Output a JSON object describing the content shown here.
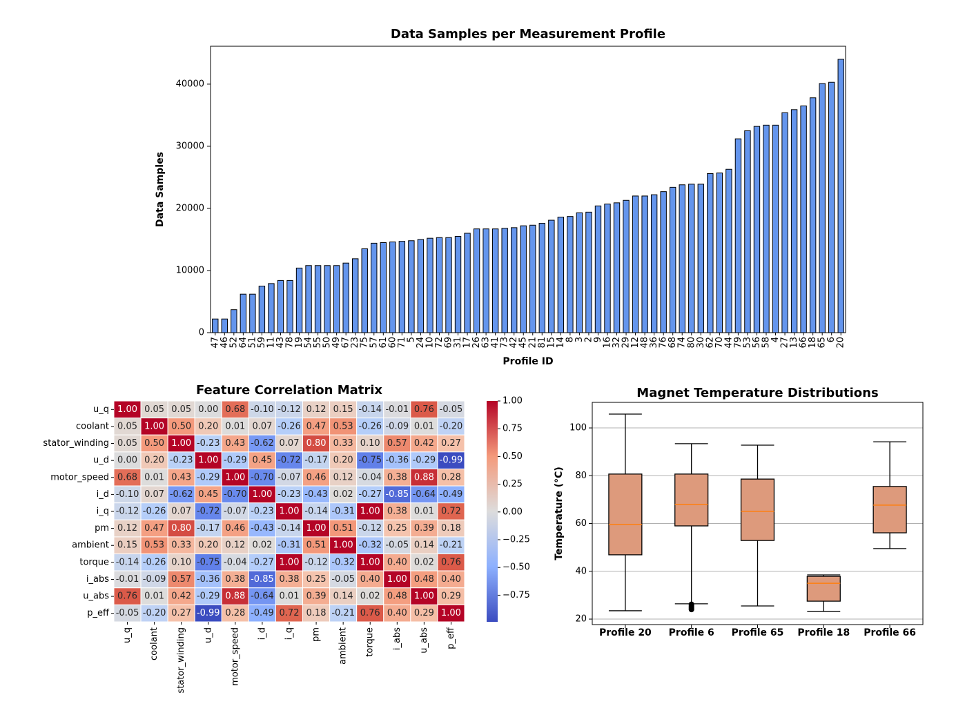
{
  "chart_data": [
    {
      "type": "bar",
      "title": "Data Samples per Measurement Profile",
      "x_label": "Profile ID",
      "y_label": "Data Samples",
      "categories": [
        "47",
        "46",
        "52",
        "64",
        "51",
        "59",
        "11",
        "43",
        "78",
        "19",
        "54",
        "55",
        "50",
        "49",
        "67",
        "23",
        "75",
        "57",
        "61",
        "60",
        "71",
        "5",
        "24",
        "10",
        "72",
        "69",
        "31",
        "17",
        "26",
        "63",
        "41",
        "73",
        "42",
        "45",
        "21",
        "81",
        "15",
        "14",
        "8",
        "3",
        "2",
        "9",
        "16",
        "32",
        "29",
        "12",
        "48",
        "36",
        "76",
        "68",
        "74",
        "80",
        "30",
        "62",
        "70",
        "44",
        "79",
        "53",
        "56",
        "58",
        "4",
        "27",
        "13",
        "66",
        "18",
        "65",
        "6",
        "20"
      ],
      "values": [
        2200,
        2200,
        3700,
        6200,
        6200,
        7500,
        7900,
        8400,
        8400,
        10400,
        10800,
        10800,
        10800,
        10800,
        11200,
        11900,
        13500,
        14400,
        14500,
        14600,
        14700,
        14800,
        15000,
        15200,
        15300,
        15300,
        15500,
        16000,
        16700,
        16700,
        16700,
        16800,
        16900,
        17200,
        17300,
        17600,
        18100,
        18600,
        18700,
        19300,
        19400,
        20400,
        20700,
        20900,
        21300,
        22000,
        22000,
        22200,
        22700,
        23400,
        23800,
        23900,
        23900,
        25600,
        25700,
        26300,
        31200,
        32500,
        33200,
        33400,
        33400,
        35400,
        35900,
        36500,
        37800,
        40100,
        40300,
        44000
      ],
      "color": "#6495ed",
      "edge_color": "#000000",
      "ylim": [
        0,
        46100
      ],
      "yticks": [
        0,
        10000,
        20000,
        30000,
        40000
      ]
    },
    {
      "type": "heatmap",
      "title": "Feature Correlation Matrix",
      "colormap": "coolwarm",
      "categories": [
        "u_q",
        "coolant",
        "stator_winding",
        "u_d",
        "motor_speed",
        "i_d",
        "i_q",
        "pm",
        "ambient",
        "torque",
        "i_abs",
        "u_abs",
        "p_eff"
      ],
      "values": [
        [
          1,
          0.05,
          0.05,
          0,
          0.68,
          -0.1,
          -0.12,
          0.12,
          0.15,
          -0.14,
          -0.01,
          0.76,
          -0.05
        ],
        [
          0.05,
          1,
          0.5,
          0.2,
          0.01,
          0.07,
          -0.26,
          0.47,
          0.53,
          -0.26,
          -0.09,
          0.01,
          -0.2
        ],
        [
          0.05,
          0.5,
          1,
          -0.23,
          0.43,
          -0.62,
          0.07,
          0.8,
          0.33,
          0.1,
          0.57,
          0.42,
          0.27
        ],
        [
          0,
          0.2,
          -0.23,
          1,
          -0.29,
          0.45,
          -0.72,
          -0.17,
          0.2,
          -0.75,
          -0.36,
          -0.29,
          -0.99
        ],
        [
          0.68,
          0.01,
          0.43,
          -0.29,
          1,
          -0.7,
          -0.07,
          0.46,
          0.12,
          -0.04,
          0.38,
          0.88,
          0.28
        ],
        [
          -0.1,
          0.07,
          -0.62,
          0.45,
          -0.7,
          1,
          -0.23,
          -0.43,
          0.02,
          -0.27,
          -0.85,
          -0.64,
          -0.49
        ],
        [
          -0.12,
          -0.26,
          0.07,
          -0.72,
          -0.07,
          -0.23,
          1,
          -0.14,
          -0.31,
          1,
          0.38,
          0.01,
          0.72
        ],
        [
          0.12,
          0.47,
          0.8,
          -0.17,
          0.46,
          -0.43,
          -0.14,
          1,
          0.51,
          -0.12,
          0.25,
          0.39,
          0.18
        ],
        [
          0.15,
          0.53,
          0.33,
          0.2,
          0.12,
          0.02,
          -0.31,
          0.51,
          1,
          -0.32,
          -0.05,
          0.14,
          -0.21
        ],
        [
          -0.14,
          -0.26,
          0.1,
          -0.75,
          -0.04,
          -0.27,
          1,
          -0.12,
          -0.32,
          1,
          0.4,
          0.02,
          0.76
        ],
        [
          -0.01,
          -0.09,
          0.57,
          -0.36,
          0.38,
          -0.85,
          0.38,
          0.25,
          -0.05,
          0.4,
          1,
          0.48,
          0.4
        ],
        [
          0.76,
          0.01,
          0.42,
          -0.29,
          0.88,
          -0.64,
          0.01,
          0.39,
          0.14,
          0.02,
          0.48,
          1,
          0.29
        ],
        [
          -0.05,
          -0.2,
          0.27,
          -0.99,
          0.28,
          -0.49,
          0.72,
          0.18,
          -0.21,
          0.76,
          0.4,
          0.29,
          1
        ]
      ],
      "value_labels": [
        [
          "1.00",
          "0.05",
          "0.05",
          "0.00",
          "0.68",
          "-0.10",
          "-0.12",
          "0.12",
          "0.15",
          "-0.14",
          "-0.01",
          "0.76",
          "-0.05"
        ],
        [
          "0.05",
          "1.00",
          "0.50",
          "0.20",
          "0.01",
          "0.07",
          "-0.26",
          "0.47",
          "0.53",
          "-0.26",
          "-0.09",
          "0.01",
          "-0.20"
        ],
        [
          "0.05",
          "0.50",
          "1.00",
          "-0.23",
          "0.43",
          "-0.62",
          "0.07",
          "0.80",
          "0.33",
          "0.10",
          "0.57",
          "0.42",
          "0.27"
        ],
        [
          "0.00",
          "0.20",
          "-0.23",
          "1.00",
          "-0.29",
          "0.45",
          "-0.72",
          "-0.17",
          "0.20",
          "-0.75",
          "-0.36",
          "-0.29",
          "-0.99"
        ],
        [
          "0.68",
          "0.01",
          "0.43",
          "-0.29",
          "1.00",
          "-0.70",
          "-0.07",
          "0.46",
          "0.12",
          "-0.04",
          "0.38",
          "0.88",
          "0.28"
        ],
        [
          "-0.10",
          "0.07",
          "-0.62",
          "0.45",
          "-0.70",
          "1.00",
          "-0.23",
          "-0.43",
          "0.02",
          "-0.27",
          "-0.85",
          "-0.64",
          "-0.49"
        ],
        [
          "-0.12",
          "-0.26",
          "0.07",
          "-0.72",
          "-0.07",
          "-0.23",
          "1.00",
          "-0.14",
          "-0.31",
          "1.00",
          "0.38",
          "0.01",
          "0.72"
        ],
        [
          "0.12",
          "0.47",
          "0.80",
          "-0.17",
          "0.46",
          "-0.43",
          "-0.14",
          "1.00",
          "0.51",
          "-0.12",
          "0.25",
          "0.39",
          "0.18"
        ],
        [
          "0.15",
          "0.53",
          "0.33",
          "0.20",
          "0.12",
          "0.02",
          "-0.31",
          "0.51",
          "1.00",
          "-0.32",
          "-0.05",
          "0.14",
          "-0.21"
        ],
        [
          "-0.14",
          "-0.26",
          "0.10",
          "-0.75",
          "-0.04",
          "-0.27",
          "1.00",
          "-0.12",
          "-0.32",
          "1.00",
          "0.40",
          "0.02",
          "0.76"
        ],
        [
          "-0.01",
          "-0.09",
          "0.57",
          "-0.36",
          "0.38",
          "-0.85",
          "0.38",
          "0.25",
          "-0.05",
          "0.40",
          "1.00",
          "0.48",
          "0.40"
        ],
        [
          "0.76",
          "0.01",
          "0.42",
          "-0.29",
          "0.88",
          "-0.64",
          "0.01",
          "0.39",
          "0.14",
          "0.02",
          "0.48",
          "1.00",
          "0.29"
        ],
        [
          "-0.05",
          "-0.20",
          "0.27",
          "-0.99",
          "0.28",
          "-0.49",
          "0.72",
          "0.18",
          "-0.21",
          "0.76",
          "0.40",
          "0.29",
          "1.00"
        ]
      ],
      "clim": [
        -0.99,
        1
      ],
      "cticks": [
        {
          "value": 1,
          "label": "1.00"
        },
        {
          "value": 0.75,
          "label": "0.75"
        },
        {
          "value": 0.5,
          "label": "0.50"
        },
        {
          "value": 0.25,
          "label": "0.25"
        },
        {
          "value": 0,
          "label": "0.00"
        },
        {
          "value": -0.25,
          "label": "−0.25"
        },
        {
          "value": -0.5,
          "label": "−0.50"
        },
        {
          "value": -0.75,
          "label": "−0.75"
        }
      ]
    },
    {
      "type": "box",
      "title": "Magnet Temperature Distributions",
      "y_label": "Temperature (°C)",
      "categories": [
        "Profile 20",
        "Profile 6",
        "Profile 65",
        "Profile 18",
        "Profile 66"
      ],
      "boxes": [
        {
          "low": 23.5,
          "q1": 46.9,
          "median": 59.6,
          "q3": 80.7,
          "high": 105.8
        },
        {
          "low": 26.4,
          "q1": 59.0,
          "median": 68.0,
          "q3": 80.7,
          "high": 93.4,
          "fliers": [
            26.2,
            25.5,
            25.0,
            24.5,
            24.0
          ]
        },
        {
          "low": 25.5,
          "q1": 52.9,
          "median": 65.1,
          "q3": 78.6,
          "high": 92.8
        },
        {
          "low": 23.2,
          "q1": 27.5,
          "median": 35.0,
          "q3": 37.9,
          "high": 38.5
        },
        {
          "low": 49.5,
          "q1": 56.1,
          "median": 67.7,
          "q3": 75.5,
          "high": 94.2
        }
      ],
      "color": "#dd9a7c",
      "median_color": "#ff7f0e",
      "ylim": [
        17.7,
        110.7
      ],
      "yticks": [
        20,
        40,
        60,
        80,
        100
      ],
      "grid": true
    }
  ]
}
